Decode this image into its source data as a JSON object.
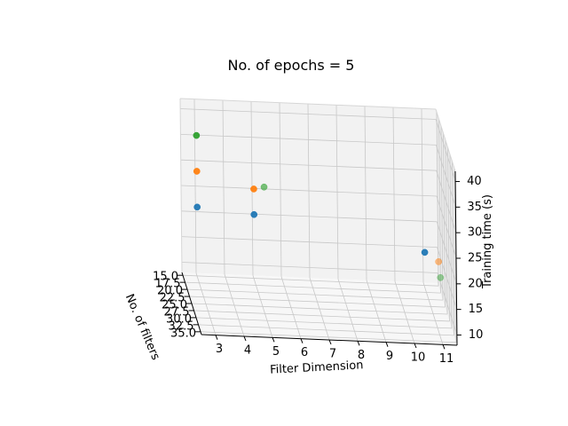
{
  "chart_data": {
    "type": "scatter",
    "title": "No. of epochs = 5",
    "xlabel": "Filter Dimension",
    "ylabel": "No. of filters",
    "zlabel": "Training time (s)",
    "grid": true,
    "xlim": [
      2.5,
      11.5
    ],
    "ylim": [
      14,
      36
    ],
    "zlim": [
      8,
      42
    ],
    "x_ticks": [
      3,
      4,
      5,
      6,
      7,
      8,
      9,
      10,
      11
    ],
    "y_ticks": [
      15.0,
      17.5,
      20.0,
      22.5,
      25.0,
      27.5,
      30.0,
      32.5,
      35.0
    ],
    "z_ticks": [
      10,
      15,
      20,
      25,
      30,
      35,
      40
    ],
    "x_tick_labels": [
      "3",
      "4",
      "5",
      "6",
      "7",
      "8",
      "9",
      "10",
      "11"
    ],
    "y_tick_labels": [
      "15.0",
      "17.5",
      "20.0",
      "22.5",
      "25.0",
      "27.5",
      "30.0",
      "32.5",
      "35.0"
    ],
    "z_tick_labels": [
      "10",
      "15",
      "20",
      "25",
      "30",
      "35",
      "40"
    ],
    "series": [
      {
        "color": "#1f77b4",
        "points": [
          {
            "x": 3,
            "y": 16,
            "z": 22
          },
          {
            "x": 5,
            "y": 16,
            "z": 21
          },
          {
            "x": 11,
            "y": 16,
            "z": 15
          }
        ]
      },
      {
        "color": "#ff7f0e",
        "points": [
          {
            "x": 3,
            "y": 16,
            "z": 29
          },
          {
            "x": 5,
            "y": 16,
            "z": 26
          },
          {
            "x": 11,
            "y": 32,
            "z": 22
          }
        ]
      },
      {
        "color": "#2ca02c",
        "points": [
          {
            "x": 3,
            "y": 16,
            "z": 36
          },
          {
            "x": 5,
            "y": 28,
            "z": 33
          },
          {
            "x": 11,
            "y": 34,
            "z": 20
          }
        ]
      }
    ]
  }
}
